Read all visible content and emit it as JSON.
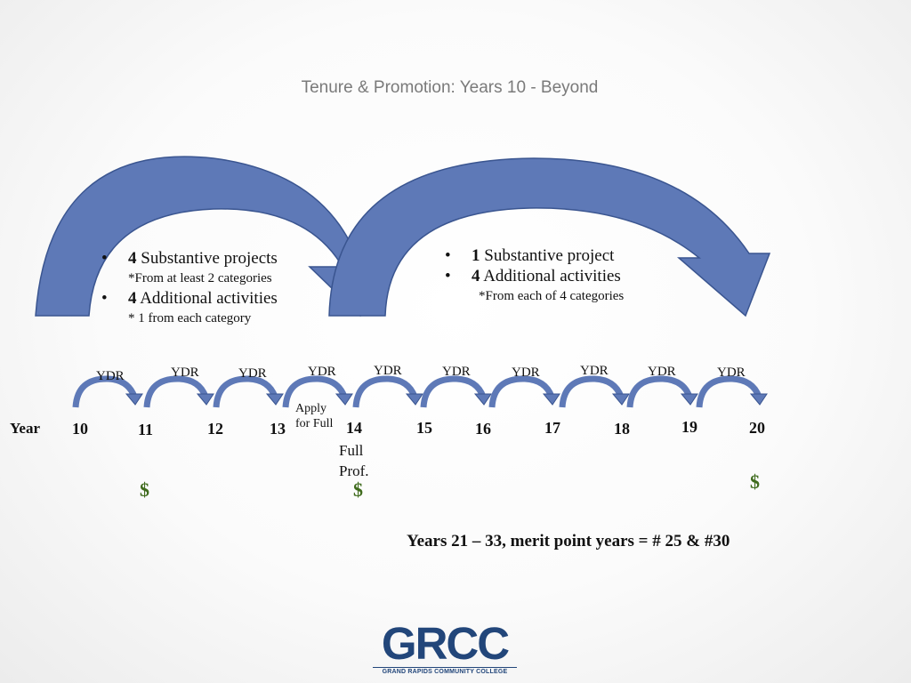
{
  "title": "Tenure & Promotion: Years 10 - Beyond",
  "block_left": {
    "line1_num": "4",
    "line1_text": " Substantive projects",
    "line1_sub": "*From at least 2 categories",
    "line2_num": "4",
    "line2_text": " Additional activities",
    "line2_sub": "* 1 from each category"
  },
  "block_right": {
    "line1_num": "1",
    "line1_text": " Substantive project",
    "line2_num": "4",
    "line2_text": " Additional activities",
    "line2_sub": "*From each of 4 categories"
  },
  "ydr_label": "YDR",
  "year_label": "Year",
  "years": [
    "10",
    "11",
    "12",
    "13",
    "14",
    "15",
    "16",
    "17",
    "18",
    "19",
    "20"
  ],
  "apply_label": [
    "Apply",
    "for Full"
  ],
  "full_prof_label": [
    "Full",
    "Prof."
  ],
  "dollar_symbol": "$",
  "merit_text": "Years 21 – 33, merit point years = # 25 & #30",
  "logo": {
    "word": "GRCC",
    "tagline": "GRAND RAPIDS COMMUNITY COLLEGE"
  },
  "colors": {
    "arrow_fill": "#5e79b7",
    "arrow_stroke": "#3a5590",
    "dollar": "#3f6b1d",
    "logo": "#22467a"
  }
}
